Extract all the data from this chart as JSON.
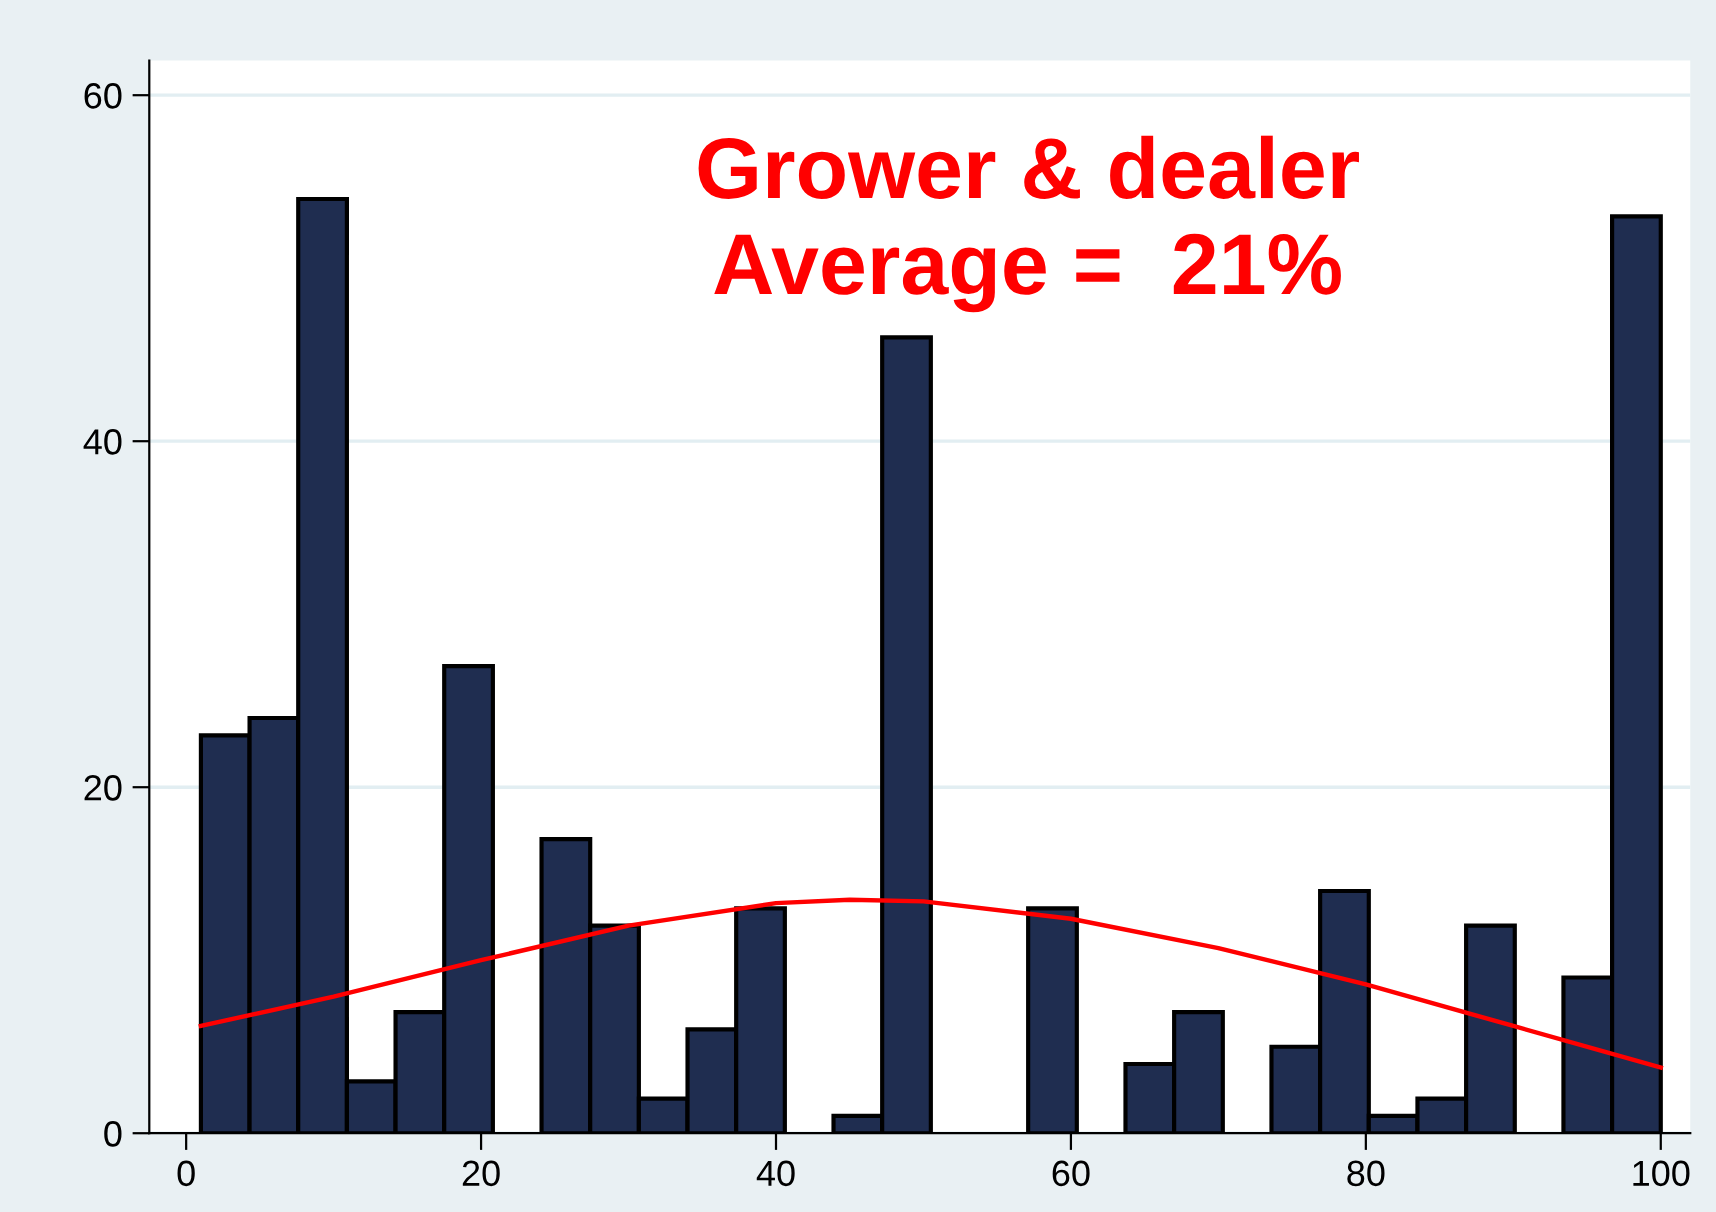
{
  "chart_data": {
    "type": "histogram",
    "bins": [
      1,
      4.3,
      7.6,
      10.9,
      14.2,
      17.5,
      20.8,
      24.1,
      27.4,
      30.7,
      34,
      37.3,
      40.6,
      43.9,
      47.2,
      50.5,
      53.8,
      57.1,
      60.4,
      63.7,
      67,
      70.3,
      73.6,
      76.9,
      80.2,
      83.5,
      86.8,
      90.1,
      93.4,
      96.7,
      100
    ],
    "values": [
      23,
      24,
      54,
      3,
      7,
      27,
      0,
      17,
      12,
      2,
      6,
      13,
      0,
      1,
      46,
      0,
      0,
      13,
      0,
      4,
      7,
      0,
      5,
      14,
      1,
      2,
      12,
      0,
      9,
      53
    ],
    "color": "#1f2d50",
    "series": [
      {
        "type": "line",
        "color": "#ff0000",
        "x": [
          1,
          10,
          20,
          30,
          40,
          45,
          50,
          60,
          70,
          80,
          90,
          100
        ],
        "values": [
          6.2,
          7.9,
          10.0,
          12.0,
          13.3,
          13.5,
          13.4,
          12.4,
          10.7,
          8.6,
          6.2,
          3.8
        ]
      }
    ],
    "annotations": [
      "Grower & dealer\nAverage =  21%"
    ],
    "xlim": [
      -2.5,
      102
    ],
    "ylim": [
      0,
      62
    ],
    "xticks": [
      0,
      20,
      40,
      60,
      80,
      100
    ],
    "yticks": [
      0,
      20,
      40,
      60
    ],
    "grid": "y"
  }
}
